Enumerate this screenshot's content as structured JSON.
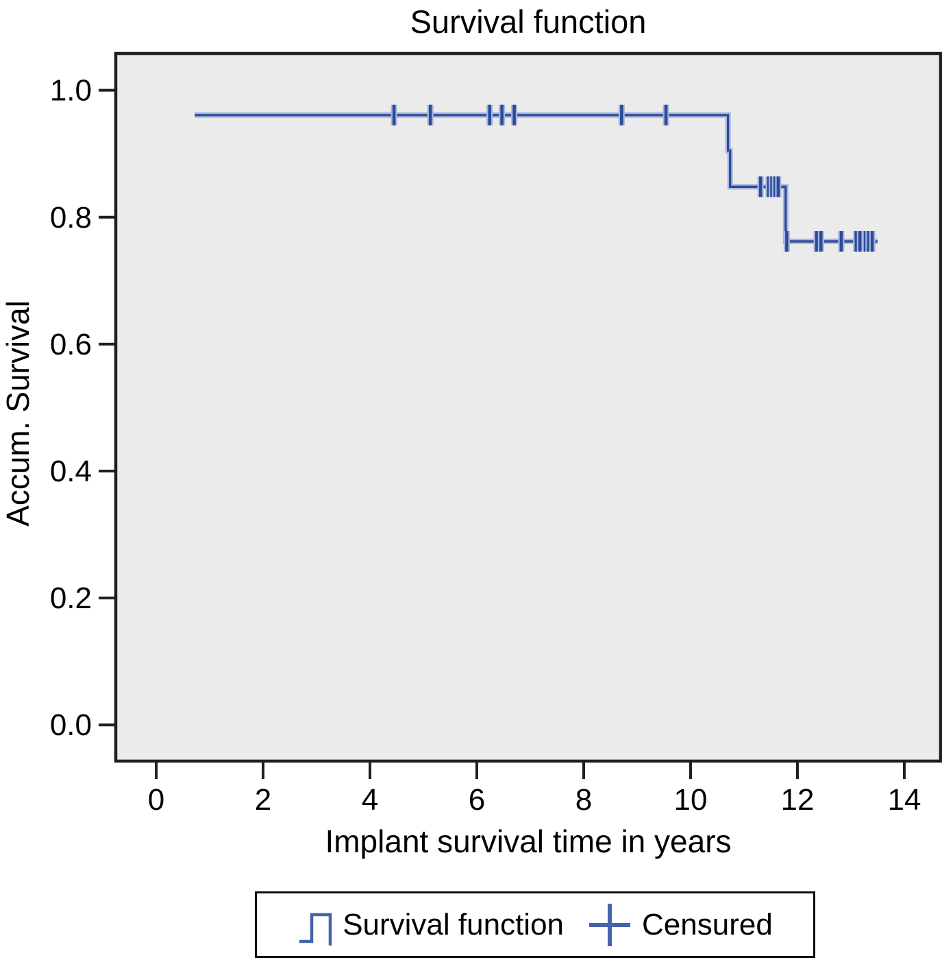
{
  "title": "Survival function",
  "axes": {
    "x_label": "Implant survival time in years",
    "y_label": "Accum. Survival"
  },
  "legend": {
    "survival_label": "Survival function",
    "censored_label": "Censured"
  },
  "colors": {
    "curve_core": "#2b4a9b",
    "curve_halo": "#a7b6dd",
    "legend_symbol": "#4763ab",
    "plot_background": "#ebebeb",
    "frame": "#1f1f1f",
    "text": "#000000"
  },
  "chart_data": {
    "type": "line",
    "subtype": "kaplan-meier-step",
    "title": "Survival function",
    "xlabel": "Implant survival time in years",
    "ylabel": "Accum. Survival",
    "xlim": [
      -0.757,
      14.68
    ],
    "ylim": [
      -0.057,
      1.058
    ],
    "xticks": [
      0,
      2,
      4,
      6,
      8,
      10,
      12,
      14
    ],
    "yticks": [
      0.0,
      0.2,
      0.4,
      0.6,
      0.8,
      1.0
    ],
    "ytick_decimals": 1,
    "grid": false,
    "legend_position": "bottom",
    "series": [
      {
        "name": "Survival function",
        "style": "step",
        "points": [
          [
            0.72,
            0.961
          ],
          [
            10.7,
            0.961
          ],
          [
            10.7,
            0.905
          ],
          [
            10.74,
            0.905
          ],
          [
            10.74,
            0.848
          ],
          [
            11.78,
            0.848
          ],
          [
            11.78,
            0.762
          ],
          [
            13.5,
            0.762
          ]
        ]
      }
    ],
    "censored": {
      "name": "Censured",
      "marker": "plus",
      "points": [
        [
          4.45,
          0.961
        ],
        [
          5.13,
          0.961
        ],
        [
          6.24,
          0.961
        ],
        [
          6.47,
          0.961
        ],
        [
          6.7,
          0.961
        ],
        [
          8.71,
          0.961
        ],
        [
          9.54,
          0.961
        ],
        [
          11.31,
          0.848
        ],
        [
          11.46,
          0.848
        ],
        [
          11.52,
          0.848
        ],
        [
          11.58,
          0.848
        ],
        [
          11.64,
          0.848
        ],
        [
          11.8,
          0.762
        ],
        [
          12.36,
          0.762
        ],
        [
          12.44,
          0.762
        ],
        [
          12.82,
          0.762
        ],
        [
          13.1,
          0.762
        ],
        [
          13.17,
          0.762
        ],
        [
          13.27,
          0.762
        ],
        [
          13.33,
          0.762
        ],
        [
          13.4,
          0.762
        ]
      ]
    }
  }
}
